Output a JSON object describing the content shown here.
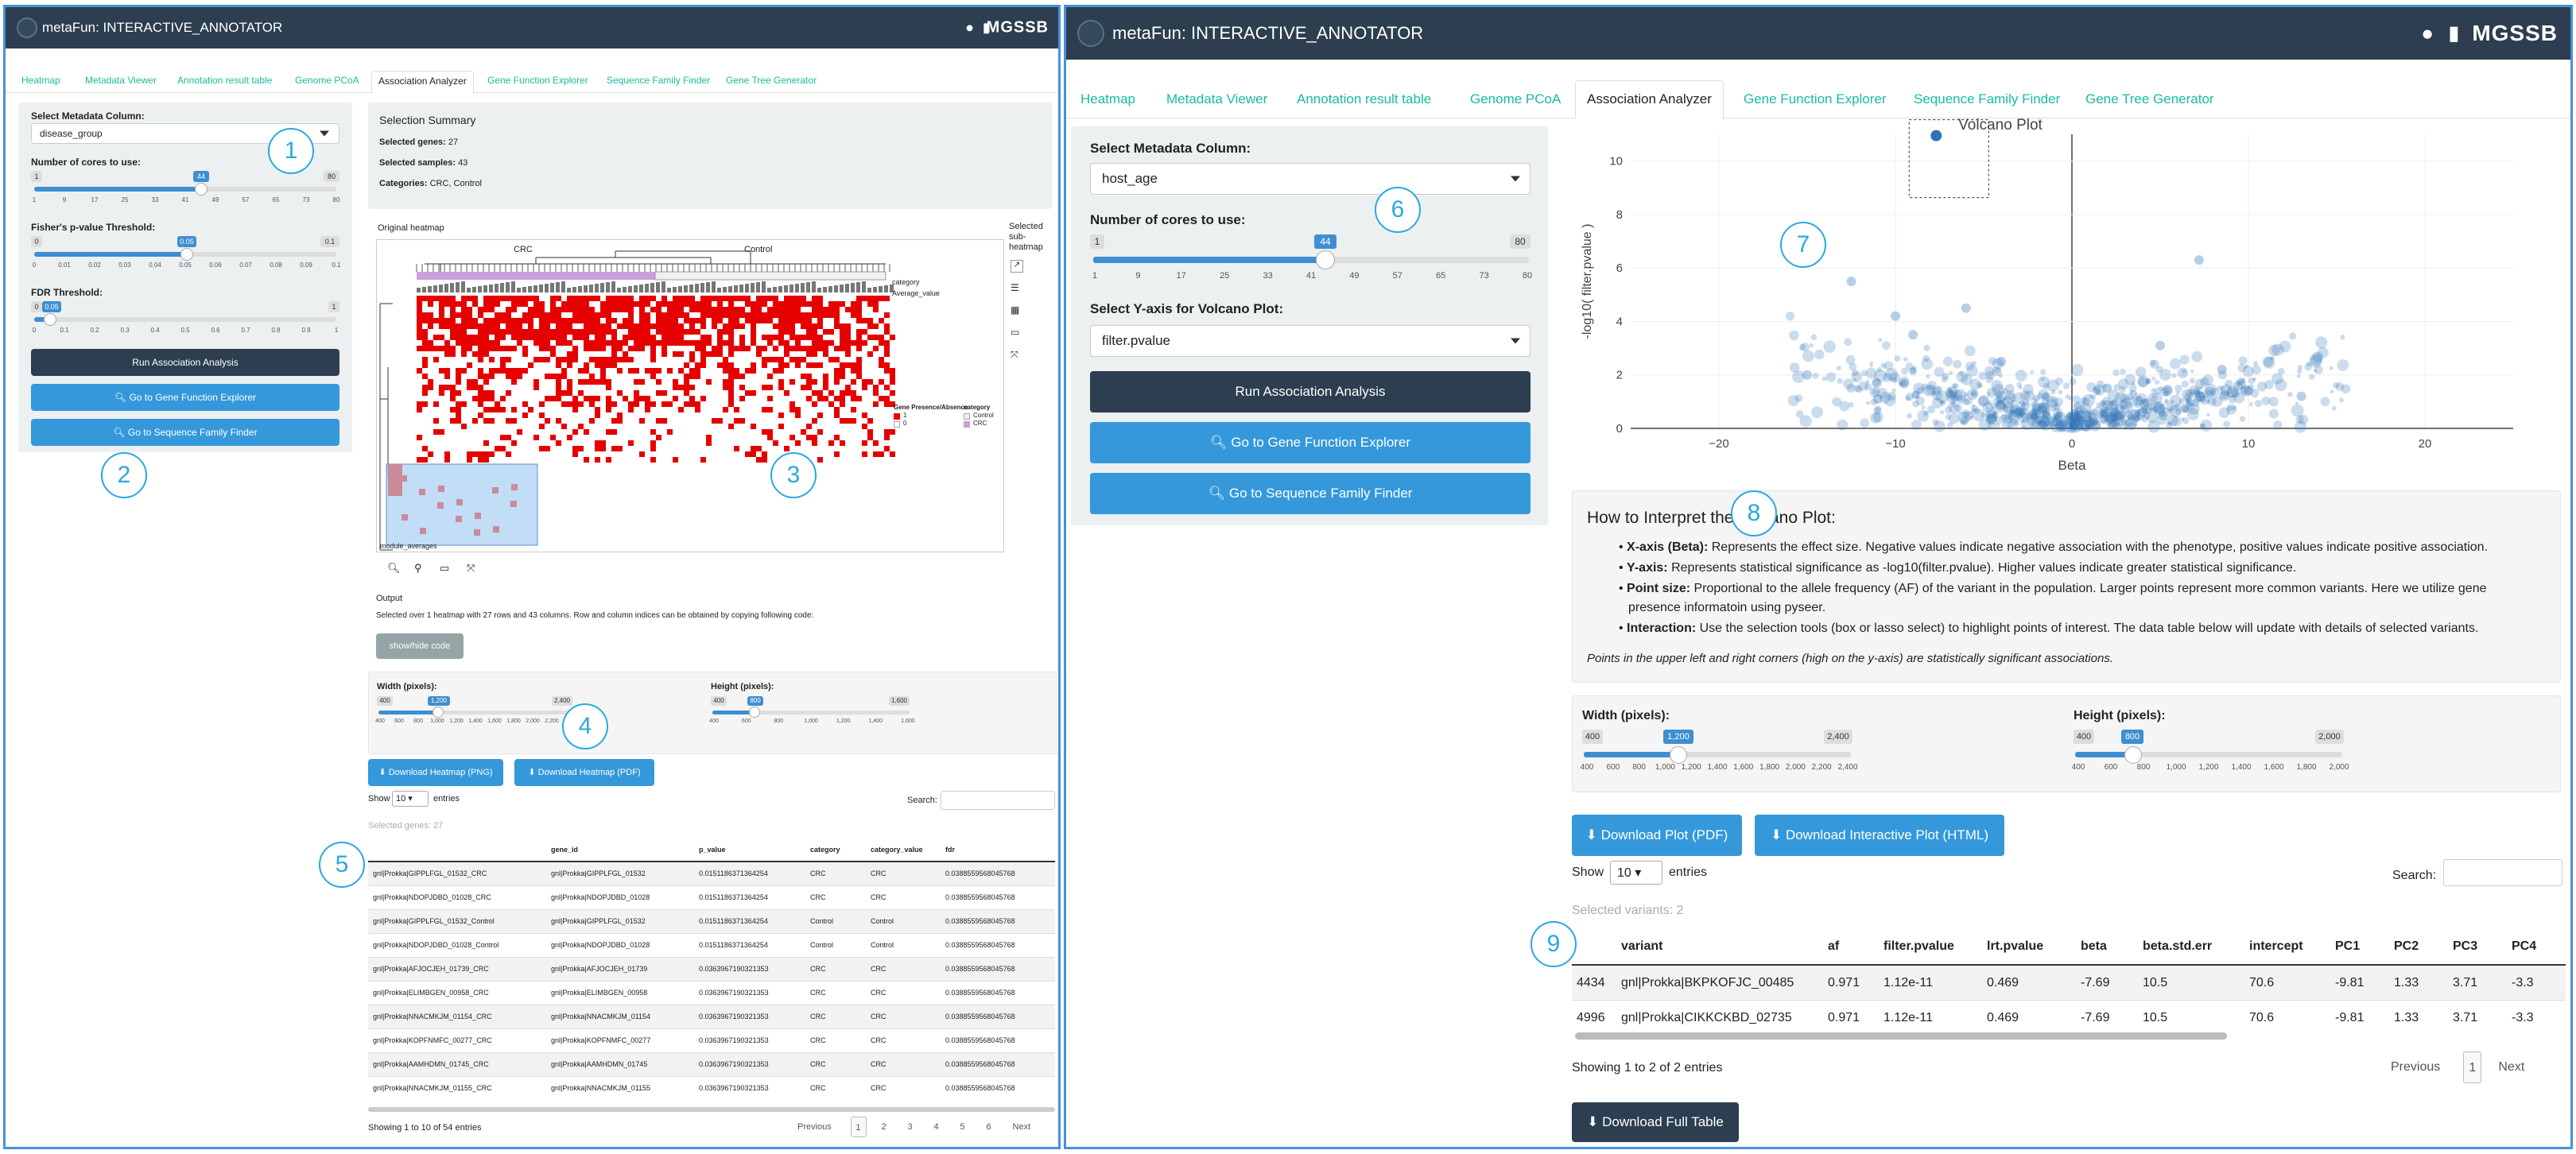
{
  "app_title": "metaFun: INTERACTIVE_ANNOTATOR",
  "brand": "MGSSB",
  "tabs": [
    "Heatmap",
    "Metadata Viewer",
    "Annotation result table",
    "Genome PCoA",
    "Association Analyzer",
    "Gene Function Explorer",
    "Sequence Family Finder",
    "Gene Tree Generator"
  ],
  "active_tab": "Association Analyzer",
  "left": {
    "sidebar": {
      "metadata_label": "Select Metadata Column:",
      "metadata_value": "disease_group",
      "cores_label": "Number of cores to use:",
      "cores_value": "44",
      "cores_min": "1",
      "cores_max": "80",
      "cores_ticks": [
        "1",
        "9",
        "17",
        "25",
        "33",
        "41",
        "49",
        "57",
        "65",
        "73",
        "80"
      ],
      "fisher_label": "Fisher's p-value Threshold:",
      "fisher_value": "0.05",
      "fisher_min": "0",
      "fisher_max": "0.1",
      "fisher_ticks": [
        "0",
        "0.01",
        "0.02",
        "0.03",
        "0.04",
        "0.05",
        "0.06",
        "0.07",
        "0.08",
        "0.09",
        "0.1"
      ],
      "fdr_label": "FDR Threshold:",
      "fdr_value": "0.05",
      "fdr_min": "0",
      "fdr_max": "1",
      "fdr_ticks": [
        "0",
        "0.1",
        "0.2",
        "0.3",
        "0.4",
        "0.5",
        "0.6",
        "0.7",
        "0.8",
        "0.9",
        "1"
      ],
      "run_button": "Run Association Analysis",
      "gene_fn_button": "Go to Gene Function Explorer",
      "seq_fam_button": "Go to Sequence Family Finder"
    },
    "summary": {
      "title": "Selection Summary",
      "genes_label": "Selected genes:",
      "genes_value": "27",
      "samples_label": "Selected samples:",
      "samples_value": "43",
      "categories_label": "Categories:",
      "categories_value": "CRC, Control"
    },
    "heatmap": {
      "title": "Original heatmap",
      "group1": "CRC",
      "group2": "Control",
      "row1": "category",
      "row2": "Average_value",
      "legend_title": "Gene Presence/Absence",
      "legend_item1": "1",
      "legend_item2": "0",
      "cat_title": "category",
      "cat_item1": "Control",
      "cat_item2": "CRC",
      "bottom_label": "module_averages",
      "selected_title": "Selected sub-heatmap"
    },
    "output": {
      "title": "Output",
      "text": "Selected over 1 heatmap with 27 rows and 43 columns. Row and column indices can be obtained by copying following code:",
      "show_hide": "show/hide code"
    },
    "dims": {
      "width_label": "Width (pixels):",
      "width_value": "1,200",
      "width_min": "400",
      "width_max": "2,400",
      "width_ticks": [
        "400",
        "600",
        "800",
        "1,000",
        "1,200",
        "1,400",
        "1,600",
        "1,800",
        "2,000",
        "2,200",
        "2,400"
      ],
      "height_label": "Height (pixels):",
      "height_value": "800",
      "height_min": "400",
      "height_max": "1,600",
      "height_ticks": [
        "400",
        "600",
        "800",
        "1,000",
        "1,200",
        "1,400",
        "1,600"
      ]
    },
    "downloads": {
      "png": "Download Heatmap (PNG)",
      "pdf": "Download Heatmap (PDF)"
    },
    "table": {
      "show": "Show",
      "entries_value": "10",
      "entries": "entries",
      "search_label": "Search:",
      "selected_caption": "Selected genes: 27",
      "columns": [
        "",
        "gene_id",
        "p_value",
        "category",
        "category_value",
        "fdr"
      ],
      "rows": [
        [
          "gnl|Prokka|GIPPLFGL_01532_CRC",
          "gnl|Prokka|GIPPLFGL_01532",
          "0.0151186371364254",
          "CRC",
          "CRC",
          "0.0388559568045768"
        ],
        [
          "gnl|Prokka|NDOPJDBD_01028_CRC",
          "gnl|Prokka|NDOPJDBD_01028",
          "0.0151186371364254",
          "CRC",
          "CRC",
          "0.0388559568045768"
        ],
        [
          "gnl|Prokka|GIPPLFGL_01532_Control",
          "gnl|Prokka|GIPPLFGL_01532",
          "0.0151186371364254",
          "Control",
          "Control",
          "0.0388559568045768"
        ],
        [
          "gnl|Prokka|NDOPJDBD_01028_Control",
          "gnl|Prokka|NDOPJDBD_01028",
          "0.0151186371364254",
          "Control",
          "Control",
          "0.0388559568045768"
        ],
        [
          "gnl|Prokka|AFJOCJEH_01739_CRC",
          "gnl|Prokka|AFJOCJEH_01739",
          "0.0363967190321353",
          "CRC",
          "CRC",
          "0.0388559568045768"
        ],
        [
          "gnl|Prokka|ELIMBGEN_00958_CRC",
          "gnl|Prokka|ELIMBGEN_00958",
          "0.0363967190321353",
          "CRC",
          "CRC",
          "0.0388559568045768"
        ],
        [
          "gnl|Prokka|NNACMKJM_01154_CRC",
          "gnl|Prokka|NNACMKJM_01154",
          "0.0363967190321353",
          "CRC",
          "CRC",
          "0.0388559568045768"
        ],
        [
          "gnl|Prokka|KOPFNMFC_00277_CRC",
          "gnl|Prokka|KOPFNMFC_00277",
          "0.0363967190321353",
          "CRC",
          "CRC",
          "0.0388559568045768"
        ],
        [
          "gnl|Prokka|AAMHDMN_01745_CRC",
          "gnl|Prokka|AAMHDMN_01745",
          "0.0363967190321353",
          "CRC",
          "CRC",
          "0.0388559568045768"
        ],
        [
          "gnl|Prokka|NNACMKJM_01155_CRC",
          "gnl|Prokka|NNACMKJM_01155",
          "0.0363967190321353",
          "CRC",
          "CRC",
          "0.0388559568045768"
        ]
      ],
      "info": "Showing 1 to 10 of 54 entries",
      "pages": [
        "Previous",
        "1",
        "2",
        "3",
        "4",
        "5",
        "6",
        "Next"
      ]
    },
    "badges": [
      "1",
      "2",
      "3",
      "4",
      "5"
    ]
  },
  "right": {
    "sidebar": {
      "metadata_label": "Select Metadata Column:",
      "metadata_value": "host_age",
      "cores_label": "Number of cores to use:",
      "cores_value": "44",
      "cores_min": "1",
      "cores_max": "80",
      "cores_ticks": [
        "1",
        "9",
        "17",
        "25",
        "33",
        "41",
        "49",
        "57",
        "65",
        "73",
        "80"
      ],
      "yaxis_label": "Select Y-axis for Volcano Plot:",
      "yaxis_value": "filter.pvalue",
      "run_button": "Run Association Analysis",
      "gene_fn_button": "Go to Gene Function Explorer",
      "seq_fam_button": "Go to Sequence Family Finder"
    },
    "volcano": {
      "title": "Volcano Plot",
      "xlabel": "Beta",
      "ylabel": "-log10( filter.pvalue )",
      "x_ticks": [
        "−20",
        "−10",
        "0",
        "10",
        "20"
      ],
      "y_ticks": [
        "0",
        "2",
        "4",
        "6",
        "8",
        "10"
      ]
    },
    "chart_data": {
      "type": "scatter",
      "title": "Volcano Plot",
      "xlabel": "Beta",
      "ylabel": "-log10( filter.pvalue )",
      "xlim": [
        -25,
        25
      ],
      "ylim": [
        0,
        11
      ],
      "selected_points": [
        {
          "x": -7.69,
          "y": 10.95
        }
      ],
      "sample_points": [
        {
          "x": 7.2,
          "y": 6.3
        },
        {
          "x": -12.5,
          "y": 5.5
        },
        {
          "x": -10,
          "y": 4.2
        },
        {
          "x": -6,
          "y": 4.5
        },
        {
          "x": -9,
          "y": 3.5
        },
        {
          "x": 5,
          "y": 3.1
        },
        {
          "x": -15,
          "y": 2.0
        },
        {
          "x": -4,
          "y": 2.5
        },
        {
          "x": 2,
          "y": 1.5
        },
        {
          "x": 10,
          "y": 1.4
        },
        {
          "x": -2,
          "y": 0.8
        },
        {
          "x": 4,
          "y": 0.6
        },
        {
          "x": 13,
          "y": 1.2
        },
        {
          "x": -11,
          "y": 1.1
        },
        {
          "x": 8.5,
          "y": 2.2
        }
      ]
    },
    "interpret": {
      "title": "How to Interpret the Volcano Plot:",
      "items": [
        {
          "bold": "X-axis (Beta):",
          "text": " Represents the effect size. Negative values indicate negative association with the phenotype, positive values indicate positive association."
        },
        {
          "bold": "Y-axis:",
          "text": " Represents statistical significance as -log10(filter.pvalue). Higher values indicate greater statistical significance."
        },
        {
          "bold": "Point size:",
          "text": " Proportional to the allele frequency (AF) of the variant in the population. Larger points represent more common variants. Here we utilize gene"
        },
        {
          "bold": "",
          "text": "presence informatoin using pyseer."
        },
        {
          "bold": "Interaction:",
          "text": " Use the selection tools (box or lasso select) to highlight points of interest. The data table below will update with details of selected variants."
        }
      ],
      "note": "Points in the upper left and right corners (high on the y-axis) are statistically significant associations."
    },
    "dims": {
      "width_label": "Width (pixels):",
      "width_value": "1,200",
      "width_min": "400",
      "width_max": "2,400",
      "width_ticks": [
        "400",
        "600",
        "800",
        "1,000",
        "1,200",
        "1,400",
        "1,600",
        "1,800",
        "2,000",
        "2,200",
        "2,400"
      ],
      "height_label": "Height (pixels):",
      "height_value": "800",
      "height_min": "400",
      "height_max": "2,000",
      "height_ticks": [
        "400",
        "600",
        "800",
        "1,000",
        "1,200",
        "1,400",
        "1,600",
        "1,800",
        "2,000"
      ]
    },
    "downloads": {
      "pdf": "Download Plot (PDF)",
      "html": "Download Interactive Plot (HTML)"
    },
    "table": {
      "show": "Show",
      "entries_value": "10",
      "entries": "entries",
      "search_label": "Search:",
      "selected_caption": "Selected variants: 2",
      "columns": [
        "",
        "variant",
        "af",
        "filter.pvalue",
        "lrt.pvalue",
        "beta",
        "beta.std.err",
        "intercept",
        "PC1",
        "PC2",
        "PC3",
        "PC4"
      ],
      "rows": [
        [
          "4434",
          "gnl|Prokka|BKPKOFJC_00485",
          "0.971",
          "1.12e-11",
          "0.469",
          "-7.69",
          "10.5",
          "70.6",
          "-9.81",
          "1.33",
          "3.71",
          "-3.3"
        ],
        [
          "4996",
          "gnl|Prokka|CIKKCKBD_02735",
          "0.971",
          "1.12e-11",
          "0.469",
          "-7.69",
          "10.5",
          "70.6",
          "-9.81",
          "1.33",
          "3.71",
          "-3.3"
        ]
      ],
      "info": "Showing 1 to 2 of 2 entries",
      "pages": [
        "Previous",
        "1",
        "Next"
      ]
    },
    "download_full": "Download Full Table",
    "badges": [
      "6",
      "7",
      "8",
      "9"
    ]
  }
}
